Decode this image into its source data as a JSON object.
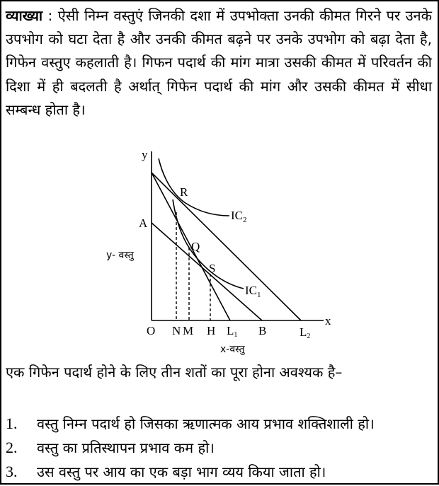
{
  "explanation": {
    "label": "व्याख्या",
    "separator": " : ",
    "text": "ऐसी निम्न वस्तुएं जिनकी दशा में उपभोक्ता उनकी कीमत गिरने पर उनके उपभोग को घटा देता है और उनकी कीमत बढ़ने पर उनके उपभोग को बढ़ा देता है, गिफेन वस्तुए कहलाती है। गिफन पदार्थ की मांग मात्रा उसकी कीमत में परिवर्तन की दिशा में ही बदलती है अर्थात् गिफेन पदार्थ की मांग और उसकी कीमत में सीधा सम्बन्ध होता है।"
  },
  "diagram": {
    "y_axis": "y",
    "x_axis": "x",
    "y_label": "y- वस्तु",
    "x_label": "x-वस्तु",
    "origin": "O",
    "points": {
      "R": "R",
      "Q": "Q",
      "S": "S",
      "A": "A"
    },
    "x_ticks": {
      "N": "N",
      "M": "M",
      "H": "H",
      "L1": "L",
      "L1_sub": "1",
      "B": "B",
      "L2": "L",
      "L2_sub": "2"
    },
    "curves": {
      "IC2": "IC",
      "IC2_sub": "2",
      "IC1": "IC",
      "IC1_sub": "1"
    }
  },
  "conditions": {
    "intro": "एक गिफेन पदार्थ होने के लिए तीन शतों का पूरा होना अवश्यक है–",
    "items": [
      {
        "num": "1.",
        "text": "वस्तु निम्न पदार्थ हो जिसका ऋणात्मक आय प्रभाव शक्तिशाली हो।"
      },
      {
        "num": "2.",
        "text": "वस्तु का प्रतिस्थापन प्रभाव कम हो।"
      },
      {
        "num": "3.",
        "text": "उस वस्तु पर आय का एक बड़ा भाग व्यय किया जाता हो।"
      }
    ]
  }
}
